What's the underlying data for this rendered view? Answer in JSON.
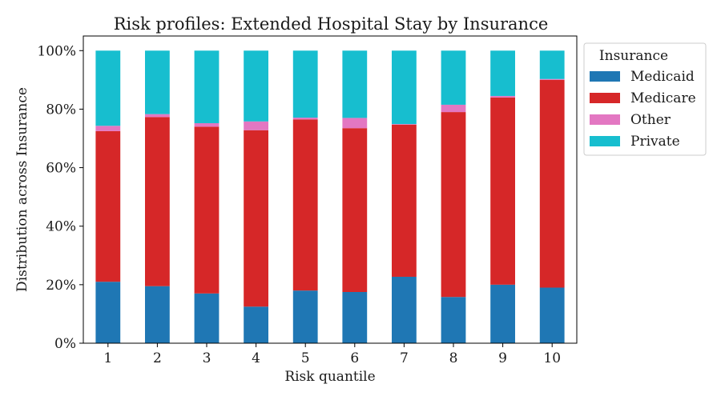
{
  "chart_data": {
    "type": "bar",
    "stacked": true,
    "title": "Risk profiles: Extended Hospital Stay by Insurance",
    "xlabel": "Risk quantile",
    "ylabel": "Distribution across Insurance",
    "categories": [
      "1",
      "2",
      "3",
      "4",
      "5",
      "6",
      "7",
      "8",
      "9",
      "10"
    ],
    "ylim": [
      0,
      1.05
    ],
    "yticks": [
      0,
      0.2,
      0.4,
      0.6,
      0.8,
      1.0
    ],
    "ytick_labels": [
      "0%",
      "20%",
      "40%",
      "60%",
      "80%",
      "100%"
    ],
    "legend": {
      "title": "Insurance",
      "position": "upper right, outside plot"
    },
    "series": [
      {
        "name": "Medicaid",
        "color": "#1f77b4",
        "values": [
          0.21,
          0.195,
          0.17,
          0.125,
          0.18,
          0.175,
          0.227,
          0.158,
          0.2,
          0.19
        ]
      },
      {
        "name": "Medicare",
        "color": "#d62728",
        "values": [
          0.515,
          0.578,
          0.57,
          0.603,
          0.585,
          0.56,
          0.52,
          0.632,
          0.64,
          0.71
        ]
      },
      {
        "name": "Other",
        "color": "#e377c2",
        "values": [
          0.018,
          0.01,
          0.012,
          0.03,
          0.006,
          0.035,
          0.002,
          0.025,
          0.005,
          0.003
        ]
      },
      {
        "name": "Private",
        "color": "#17becf",
        "values": [
          0.257,
          0.217,
          0.248,
          0.242,
          0.229,
          0.23,
          0.251,
          0.185,
          0.155,
          0.097
        ]
      }
    ]
  }
}
